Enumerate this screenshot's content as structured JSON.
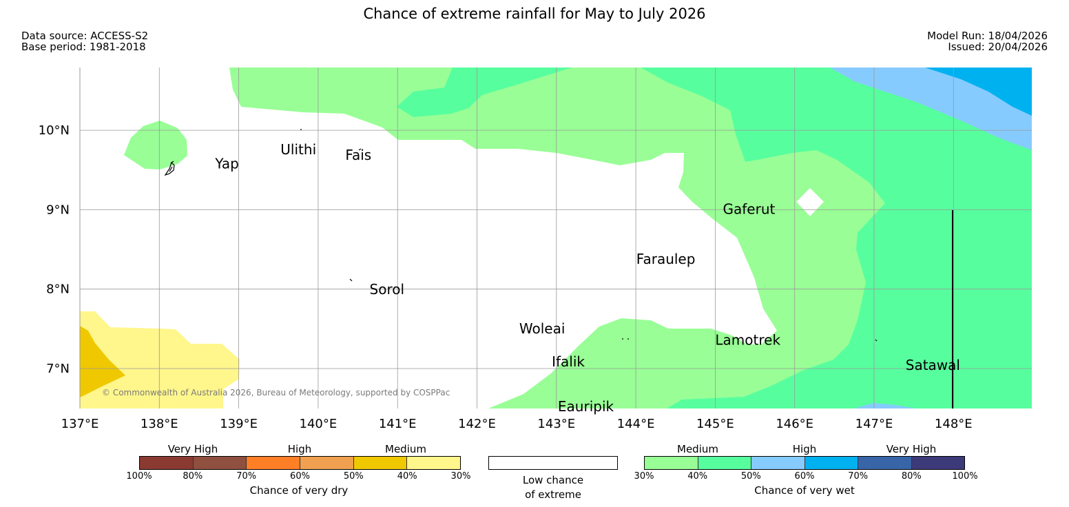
{
  "header": {
    "title": "Chance of extreme rainfall for May to July 2026",
    "data_source": "Data source: ACCESS-S2",
    "base_period": "Base period: 1981-2018",
    "model_run": "Model Run: 18/04/2026",
    "issued": "Issued: 20/04/2026"
  },
  "map": {
    "lon_range": [
      137,
      149
    ],
    "lat_range": [
      6.5,
      10.8
    ],
    "lon_ticks": [
      "137°E",
      "138°E",
      "139°E",
      "140°E",
      "141°E",
      "142°E",
      "143°E",
      "144°E",
      "145°E",
      "146°E",
      "147°E",
      "148°E"
    ],
    "lat_ticks": [
      "10°N",
      "9°N",
      "8°N",
      "7°N"
    ],
    "copyright": "© Commonwealth of Australia 2026, Bureau of Meteorology, supported by COSPPac",
    "places": [
      {
        "name": "Yap",
        "lon": 138.2,
        "lat": 9.52
      },
      {
        "name": "Ulithi",
        "lon": 139.7,
        "lat": 9.87
      },
      {
        "name": "Fais",
        "lon": 140.55,
        "lat": 9.76
      },
      {
        "name": "Sorol",
        "lon": 140.5,
        "lat": 8.05
      },
      {
        "name": "Gaferut",
        "lon": 145.4,
        "lat": 9.05
      },
      {
        "name": "Faraulep",
        "lon": 144.7,
        "lat": 8.45
      },
      {
        "name": "Woleai",
        "lon": 143.4,
        "lat": 7.45
      },
      {
        "name": "Ifalik",
        "lon": 144.0,
        "lat": 7.25
      },
      {
        "name": "Lamotrek",
        "lon": 145.85,
        "lat": 7.43
      },
      {
        "name": "Satawal",
        "lon": 147.05,
        "lat": 7.2
      },
      {
        "name": "Eauripik",
        "lon": 143.4,
        "lat": 6.6
      }
    ],
    "colors": {
      "wet_medium_30_40": "#99fe96",
      "wet_medium_40_50": "#57fe9e",
      "wet_high_50_60": "#86cbfe",
      "wet_high_60_70": "#00b1f0",
      "dry_medium_30_40": "#fff68c",
      "dry_medium_40_50": "#f0c800",
      "low_chance": "#ffffff",
      "grid": "#999999"
    }
  },
  "legend": {
    "dry": {
      "title": "Chance of very dry",
      "categories": [
        "Very High",
        "High",
        "Medium"
      ],
      "ticks": [
        "100%",
        "80%",
        "70%",
        "60%",
        "50%",
        "40%",
        "30%"
      ],
      "colors": [
        "#8b3a32",
        "#8f5040",
        "#ff7f27",
        "#f0a050",
        "#f0c800",
        "#fff68c"
      ]
    },
    "low": {
      "line1": "Low chance",
      "line2": "of extreme"
    },
    "wet": {
      "title": "Chance of very wet",
      "categories": [
        "Medium",
        "High",
        "Very High"
      ],
      "ticks": [
        "30%",
        "40%",
        "50%",
        "60%",
        "70%",
        "80%",
        "100%"
      ],
      "colors": [
        "#99fe96",
        "#57fe9e",
        "#86cbfe",
        "#00b1f0",
        "#3865a8",
        "#3d3a7a"
      ]
    }
  }
}
